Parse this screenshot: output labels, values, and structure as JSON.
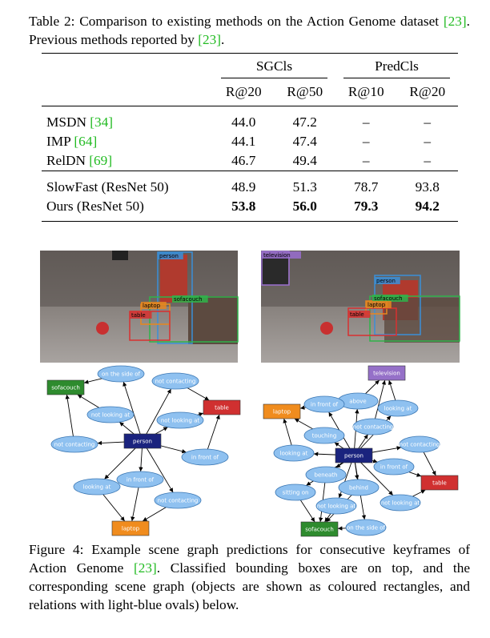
{
  "table_caption": [
    "Table 2: Comparison to existing methods on the Action Genome dataset ",
    "[23]",
    ". Previous methods reported by ",
    "[23]",
    "."
  ],
  "table": {
    "groups": [
      "SGCls",
      "PredCls"
    ],
    "columns": [
      "R@20",
      "R@50",
      "R@10",
      "R@20"
    ],
    "rows": [
      {
        "name": "MSDN ",
        "cite": "[34]",
        "cells": [
          "44.0",
          "47.2",
          "–",
          "–"
        ]
      },
      {
        "name": "IMP ",
        "cite": "[64]",
        "cells": [
          "44.1",
          "47.4",
          "–",
          "–"
        ]
      },
      {
        "name": "RelDN ",
        "cite": "[69]",
        "cells": [
          "46.7",
          "49.4",
          "–",
          "–"
        ]
      },
      {
        "name": "SlowFast (ResNet 50)",
        "cells": [
          "48.9",
          "51.3",
          "78.7",
          "93.8"
        ]
      },
      {
        "name": "Ours (ResNet 50)",
        "cells": [
          "53.8",
          "56.0",
          "79.3",
          "94.2"
        ],
        "bold": true
      }
    ]
  },
  "images": [
    {
      "boxes": [
        "person",
        "sofacouch",
        "laptop",
        "table"
      ]
    },
    {
      "boxes": [
        "television",
        "person",
        "sofacouch",
        "laptop",
        "table"
      ]
    }
  ],
  "graphs": [
    {
      "objects": [
        "sofacouch",
        "table",
        "person",
        "laptop"
      ],
      "relations": [
        "on the side of",
        "not contacting",
        "not looking at",
        "not looking at",
        "not contacting",
        "in front of",
        "looking at",
        "in front of",
        "not contacting"
      ]
    },
    {
      "objects": [
        "television",
        "laptop",
        "person",
        "table",
        "sofacouch"
      ],
      "relations": [
        "above",
        "in front of",
        "looking at",
        "not contacting",
        "touching",
        "not contacting",
        "looking at",
        "in front of",
        "beneath",
        "sitting on",
        "behind",
        "not looking at",
        "not looking at",
        "on the side of"
      ]
    }
  ],
  "figure_caption": [
    "Figure 4:  Example scene graph predictions for consecutive keyframes of Action Genome ",
    "[23]",
    ". Classified bounding boxes are on top, and the corresponding scene graph (objects are shown as coloured rectangles, and relations with light-blue ovals) below."
  ]
}
